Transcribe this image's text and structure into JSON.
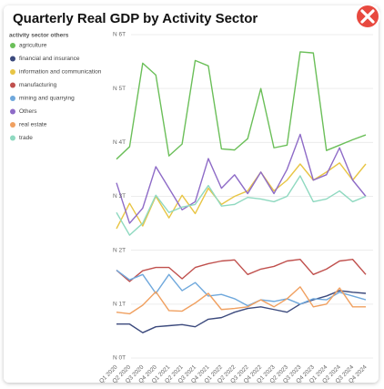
{
  "chart_data": {
    "type": "line",
    "title": "Quarterly Real GDP by Activity Sector",
    "legend_title": "activity sector others",
    "legend": "left",
    "grid": true,
    "categories": [
      "Q1 2020",
      "Q2 2020",
      "Q3 2020",
      "Q4 2020",
      "Q1 2021",
      "Q2 2021",
      "Q3 2021",
      "Q4 2021",
      "Q1 2022",
      "Q2 2022",
      "Q3 2022",
      "Q4 2022",
      "Q1 2023",
      "Q2 2023",
      "Q3 2023",
      "Q4 2023",
      "Q1 2024",
      "Q2 2024",
      "Q3 2024",
      "Q4 2024"
    ],
    "ylim": [
      0,
      6000000000000.0
    ],
    "yticks": [
      {
        "value": 0,
        "label": "N 0T"
      },
      {
        "value": 1000000000000.0,
        "label": "N 1T"
      },
      {
        "value": 2000000000000.0,
        "label": "N 2T"
      },
      {
        "value": 3000000000000.0,
        "label": "N 3T"
      },
      {
        "value": 4000000000000.0,
        "label": "N 4T"
      },
      {
        "value": 5000000000000.0,
        "label": "N 5T"
      },
      {
        "value": 6000000000000.0,
        "label": "N 6T"
      }
    ],
    "series": [
      {
        "name": "agriculture",
        "color": "#6bbf59",
        "values": [
          3690000000000.0,
          3920000000000.0,
          5470000000000.0,
          5250000000000.0,
          3750000000000.0,
          3970000000000.0,
          5520000000000.0,
          5420000000000.0,
          3880000000000.0,
          3860000000000.0,
          4070000000000.0,
          5000000000000.0,
          3900000000000.0,
          3950000000000.0,
          5680000000000.0,
          5660000000000.0,
          3850000000000.0,
          3950000000000.0,
          4050000000000.0,
          4140000000000.0
        ]
      },
      {
        "name": "financial and insurance",
        "color": "#3c4a7d",
        "values": [
          630000000000.0,
          630000000000.0,
          470000000000.0,
          580000000000.0,
          600000000000.0,
          620000000000.0,
          580000000000.0,
          720000000000.0,
          750000000000.0,
          850000000000.0,
          920000000000.0,
          950000000000.0,
          900000000000.0,
          850000000000.0,
          1000000000000.0,
          1080000000000.0,
          1150000000000.0,
          1250000000000.0,
          1220000000000.0,
          1200000000000.0
        ]
      },
      {
        "name": "information and communication",
        "color": "#e8c545",
        "values": [
          2400000000000.0,
          2870000000000.0,
          2450000000000.0,
          3000000000000.0,
          2600000000000.0,
          3020000000000.0,
          2680000000000.0,
          3150000000000.0,
          2850000000000.0,
          3000000000000.0,
          3100000000000.0,
          3450000000000.0,
          3100000000000.0,
          3300000000000.0,
          3600000000000.0,
          3300000000000.0,
          3450000000000.0,
          3620000000000.0,
          3300000000000.0,
          3600000000000.0
        ]
      },
      {
        "name": "manufacturing",
        "color": "#c0504d",
        "values": [
          1630000000000.0,
          1420000000000.0,
          1620000000000.0,
          1680000000000.0,
          1680000000000.0,
          1470000000000.0,
          1680000000000.0,
          1750000000000.0,
          1800000000000.0,
          1820000000000.0,
          1550000000000.0,
          1650000000000.0,
          1700000000000.0,
          1800000000000.0,
          1830000000000.0,
          1550000000000.0,
          1650000000000.0,
          1800000000000.0,
          1830000000000.0,
          1550000000000.0
        ]
      },
      {
        "name": "mining and quarrying",
        "color": "#6fa8dc",
        "values": [
          1630000000000.0,
          1450000000000.0,
          1550000000000.0,
          1200000000000.0,
          1550000000000.0,
          1250000000000.0,
          1400000000000.0,
          1150000000000.0,
          1180000000000.0,
          1100000000000.0,
          970000000000.0,
          1080000000000.0,
          1050000000000.0,
          1100000000000.0,
          1000000000000.0,
          1100000000000.0,
          1080000000000.0,
          1220000000000.0,
          1150000000000.0,
          1080000000000.0
        ]
      },
      {
        "name": "Others",
        "color": "#8e6bc7",
        "values": [
          3250000000000.0,
          2500000000000.0,
          2780000000000.0,
          3550000000000.0,
          3150000000000.0,
          2750000000000.0,
          2900000000000.0,
          3700000000000.0,
          3150000000000.0,
          3400000000000.0,
          3050000000000.0,
          3450000000000.0,
          3050000000000.0,
          3500000000000.0,
          4150000000000.0,
          3300000000000.0,
          3400000000000.0,
          3900000000000.0,
          3300000000000.0,
          3000000000000.0
        ]
      },
      {
        "name": "real estate",
        "color": "#f0a060",
        "values": [
          850000000000.0,
          820000000000.0,
          980000000000.0,
          1230000000000.0,
          880000000000.0,
          870000000000.0,
          1020000000000.0,
          1200000000000.0,
          900000000000.0,
          920000000000.0,
          950000000000.0,
          1080000000000.0,
          950000000000.0,
          1100000000000.0,
          1320000000000.0,
          950000000000.0,
          1000000000000.0,
          1300000000000.0,
          950000000000.0,
          950000000000.0
        ]
      },
      {
        "name": "trade",
        "color": "#8fd9c0",
        "values": [
          2700000000000.0,
          2280000000000.0,
          2500000000000.0,
          3020000000000.0,
          2700000000000.0,
          2800000000000.0,
          2850000000000.0,
          3200000000000.0,
          2820000000000.0,
          2850000000000.0,
          2980000000000.0,
          2950000000000.0,
          2900000000000.0,
          3000000000000.0,
          3380000000000.0,
          2900000000000.0,
          2950000000000.0,
          3100000000000.0,
          2900000000000.0,
          3000000000000.0
        ]
      }
    ]
  }
}
